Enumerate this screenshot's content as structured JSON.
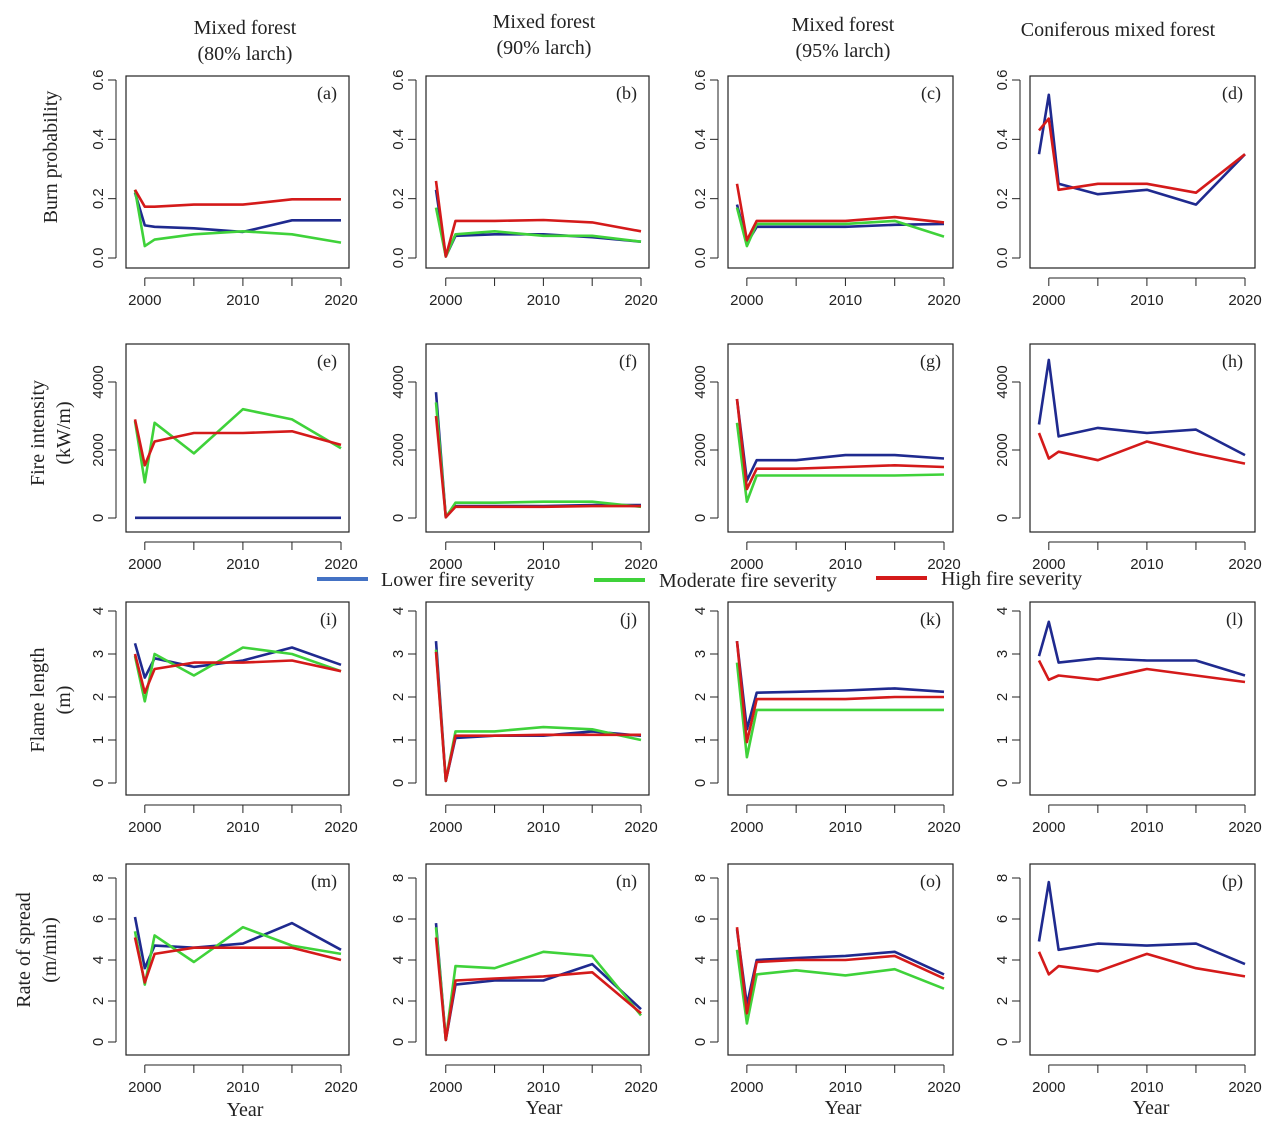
{
  "colors": {
    "lower": "#1f2a8f",
    "moderate": "#3fd23a",
    "high": "#d41a1a",
    "legend_lower": "#4472c4"
  },
  "legend": [
    {
      "key": "lower",
      "label": "Lower fire severity"
    },
    {
      "key": "moderate",
      "label": "Moderate fire severity"
    },
    {
      "key": "high",
      "label": "High fire severity"
    }
  ],
  "columns": [
    {
      "title_line1": "Mixed forest",
      "title_line2": "(80% larch)"
    },
    {
      "title_line1": "Mixed forest",
      "title_line2": "(90% larch)"
    },
    {
      "title_line1": "Mixed forest",
      "title_line2": "(95% larch)"
    },
    {
      "title_line1": "Coniferous mixed forest",
      "title_line2": ""
    }
  ],
  "rows": [
    {
      "label_line1": "Burn probability",
      "label_line2": "",
      "yticks": [
        "0.0",
        "0.2",
        "0.4",
        "0.6"
      ],
      "ylim": [
        0,
        0.6
      ]
    },
    {
      "label_line1": "Fire intensity",
      "label_line2": "(kW/m)",
      "yticks": [
        "0",
        "2000",
        "4000"
      ],
      "ylim": [
        0,
        5000
      ]
    },
    {
      "label_line1": "Flame length",
      "label_line2": "(m)",
      "yticks": [
        "0",
        "1",
        "2",
        "3",
        "4"
      ],
      "ylim": [
        0,
        4
      ]
    },
    {
      "label_line1": "Rate of spread",
      "label_line2": "(m/min)",
      "yticks": [
        "0",
        "2",
        "4",
        "6",
        "8"
      ],
      "ylim": [
        0,
        8
      ]
    }
  ],
  "xticks": [
    "2000",
    "2010",
    "2020"
  ],
  "xlabel": "Year",
  "chart_data": {
    "type": "line",
    "x": [
      1999,
      2000,
      2001,
      2005,
      2010,
      2015,
      2020
    ],
    "xlim": [
      1999,
      2020
    ],
    "panels": [
      {
        "label": "(a)",
        "series": [
          {
            "name": "Lower fire severity",
            "key": "lower",
            "values": [
              0.22,
              0.11,
              0.105,
              0.1,
              0.088,
              0.127,
              0.127
            ]
          },
          {
            "name": "Moderate fire severity",
            "key": "moderate",
            "values": [
              0.23,
              0.04,
              0.062,
              0.08,
              0.09,
              0.08,
              0.052
            ]
          },
          {
            "name": "High fire severity",
            "key": "high",
            "values": [
              0.23,
              0.173,
              0.173,
              0.18,
              0.18,
              0.198,
              0.198
            ]
          }
        ]
      },
      {
        "label": "(b)",
        "series": [
          {
            "name": "Lower fire severity",
            "key": "lower",
            "values": [
              0.23,
              0.005,
              0.075,
              0.08,
              0.08,
              0.07,
              0.055
            ]
          },
          {
            "name": "Moderate fire severity",
            "key": "moderate",
            "values": [
              0.17,
              0.005,
              0.08,
              0.09,
              0.075,
              0.075,
              0.055
            ]
          },
          {
            "name": "High fire severity",
            "key": "high",
            "values": [
              0.26,
              0.005,
              0.125,
              0.125,
              0.128,
              0.12,
              0.09
            ]
          }
        ]
      },
      {
        "label": "(c)",
        "series": [
          {
            "name": "Lower fire severity",
            "key": "lower",
            "values": [
              0.18,
              0.05,
              0.105,
              0.105,
              0.105,
              0.112,
              0.115
            ]
          },
          {
            "name": "Moderate fire severity",
            "key": "moderate",
            "values": [
              0.17,
              0.04,
              0.115,
              0.115,
              0.115,
              0.125,
              0.072
            ]
          },
          {
            "name": "High fire severity",
            "key": "high",
            "values": [
              0.25,
              0.06,
              0.125,
              0.125,
              0.125,
              0.138,
              0.12
            ]
          }
        ]
      },
      {
        "label": "(d)",
        "series": [
          {
            "name": "Lower fire severity",
            "key": "lower",
            "values": [
              0.35,
              0.55,
              0.25,
              0.215,
              0.23,
              0.18,
              0.35
            ]
          },
          {
            "name": "High fire severity",
            "key": "high",
            "values": [
              0.43,
              0.47,
              0.23,
              0.25,
              0.25,
              0.22,
              0.35
            ]
          }
        ]
      },
      {
        "label": "(e)",
        "series": [
          {
            "name": "Lower fire severity",
            "key": "lower",
            "values": [
              5,
              5,
              5,
              5,
              5,
              5,
              5
            ]
          },
          {
            "name": "Moderate fire severity",
            "key": "moderate",
            "values": [
              2850,
              1050,
              2800,
              1900,
              3200,
              2900,
              2050
            ]
          },
          {
            "name": "High fire severity",
            "key": "high",
            "values": [
              2900,
              1550,
              2250,
              2500,
              2500,
              2550,
              2150
            ]
          }
        ]
      },
      {
        "label": "(f)",
        "series": [
          {
            "name": "Lower fire severity",
            "key": "lower",
            "values": [
              3700,
              20,
              350,
              350,
              350,
              380,
              380
            ]
          },
          {
            "name": "Moderate fire severity",
            "key": "moderate",
            "values": [
              3400,
              20,
              450,
              450,
              480,
              480,
              330
            ]
          },
          {
            "name": "High fire severity",
            "key": "high",
            "values": [
              3000,
              20,
              330,
              330,
              330,
              350,
              350
            ]
          }
        ]
      },
      {
        "label": "(g)",
        "series": [
          {
            "name": "Lower fire severity",
            "key": "lower",
            "values": [
              3500,
              1100,
              1700,
              1700,
              1850,
              1850,
              1750
            ]
          },
          {
            "name": "Moderate fire severity",
            "key": "moderate",
            "values": [
              2800,
              480,
              1250,
              1250,
              1250,
              1250,
              1280
            ]
          },
          {
            "name": "High fire severity",
            "key": "high",
            "values": [
              3500,
              850,
              1450,
              1450,
              1500,
              1550,
              1500
            ]
          }
        ]
      },
      {
        "label": "(h)",
        "series": [
          {
            "name": "Lower fire severity",
            "key": "lower",
            "values": [
              2750,
              4650,
              2400,
              2650,
              2500,
              2600,
              1850
            ]
          },
          {
            "name": "High fire severity",
            "key": "high",
            "values": [
              2500,
              1750,
              1950,
              1700,
              2250,
              1900,
              1600
            ]
          }
        ]
      },
      {
        "label": "(i)",
        "series": [
          {
            "name": "Lower fire severity",
            "key": "lower",
            "values": [
              3.25,
              2.45,
              2.9,
              2.7,
              2.85,
              3.15,
              2.75
            ]
          },
          {
            "name": "Moderate fire severity",
            "key": "moderate",
            "values": [
              2.95,
              1.9,
              3.0,
              2.5,
              3.15,
              3.0,
              2.6
            ]
          },
          {
            "name": "High fire severity",
            "key": "high",
            "values": [
              3.0,
              2.1,
              2.65,
              2.8,
              2.8,
              2.85,
              2.6
            ]
          }
        ]
      },
      {
        "label": "(j)",
        "series": [
          {
            "name": "Lower fire severity",
            "key": "lower",
            "values": [
              3.3,
              0.05,
              1.05,
              1.1,
              1.1,
              1.2,
              1.1
            ]
          },
          {
            "name": "Moderate fire severity",
            "key": "moderate",
            "values": [
              3.1,
              0.05,
              1.2,
              1.2,
              1.3,
              1.25,
              1.0
            ]
          },
          {
            "name": "High fire severity",
            "key": "high",
            "values": [
              3.05,
              0.05,
              1.1,
              1.1,
              1.12,
              1.12,
              1.12
            ]
          }
        ]
      },
      {
        "label": "(k)",
        "series": [
          {
            "name": "Lower fire severity",
            "key": "lower",
            "values": [
              3.3,
              1.25,
              2.1,
              2.12,
              2.15,
              2.2,
              2.12
            ]
          },
          {
            "name": "Moderate fire severity",
            "key": "moderate",
            "values": [
              2.8,
              0.6,
              1.7,
              1.7,
              1.7,
              1.7,
              1.7
            ]
          },
          {
            "name": "High fire severity",
            "key": "high",
            "values": [
              3.3,
              0.95,
              1.95,
              1.95,
              1.95,
              2.0,
              2.0
            ]
          }
        ]
      },
      {
        "label": "(l)",
        "series": [
          {
            "name": "Lower fire severity",
            "key": "lower",
            "values": [
              2.95,
              3.75,
              2.8,
              2.9,
              2.85,
              2.85,
              2.5
            ]
          },
          {
            "name": "High fire severity",
            "key": "high",
            "values": [
              2.85,
              2.4,
              2.5,
              2.4,
              2.65,
              2.5,
              2.35
            ]
          }
        ]
      },
      {
        "label": "(m)",
        "series": [
          {
            "name": "Lower fire severity",
            "key": "lower",
            "values": [
              6.1,
              3.6,
              4.7,
              4.6,
              4.8,
              5.8,
              4.5
            ]
          },
          {
            "name": "Moderate fire severity",
            "key": "moderate",
            "values": [
              5.4,
              2.8,
              5.2,
              3.9,
              5.6,
              4.7,
              4.3
            ]
          },
          {
            "name": "High fire severity",
            "key": "high",
            "values": [
              5.1,
              2.9,
              4.3,
              4.6,
              4.6,
              4.6,
              4.0
            ]
          }
        ]
      },
      {
        "label": "(n)",
        "series": [
          {
            "name": "Lower fire severity",
            "key": "lower",
            "values": [
              5.8,
              0.1,
              2.8,
              3.0,
              3.0,
              3.8,
              1.6
            ]
          },
          {
            "name": "Moderate fire severity",
            "key": "moderate",
            "values": [
              5.6,
              0.1,
              3.7,
              3.6,
              4.4,
              4.2,
              1.3
            ]
          },
          {
            "name": "High fire severity",
            "key": "high",
            "values": [
              5.1,
              0.1,
              3.0,
              3.1,
              3.2,
              3.4,
              1.4
            ]
          }
        ]
      },
      {
        "label": "(o)",
        "series": [
          {
            "name": "Lower fire severity",
            "key": "lower",
            "values": [
              5.5,
              1.8,
              4.0,
              4.1,
              4.2,
              4.4,
              3.3
            ]
          },
          {
            "name": "Moderate fire severity",
            "key": "moderate",
            "values": [
              4.5,
              0.9,
              3.3,
              3.5,
              3.25,
              3.55,
              2.6
            ]
          },
          {
            "name": "High fire severity",
            "key": "high",
            "values": [
              5.6,
              1.4,
              3.9,
              4.0,
              4.0,
              4.2,
              3.1
            ]
          }
        ]
      },
      {
        "label": "(p)",
        "series": [
          {
            "name": "Lower fire severity",
            "key": "lower",
            "values": [
              4.9,
              7.8,
              4.5,
              4.8,
              4.7,
              4.8,
              3.8
            ]
          },
          {
            "name": "High fire severity",
            "key": "high",
            "values": [
              4.4,
              3.3,
              3.7,
              3.45,
              4.3,
              3.6,
              3.2
            ]
          }
        ]
      }
    ]
  }
}
